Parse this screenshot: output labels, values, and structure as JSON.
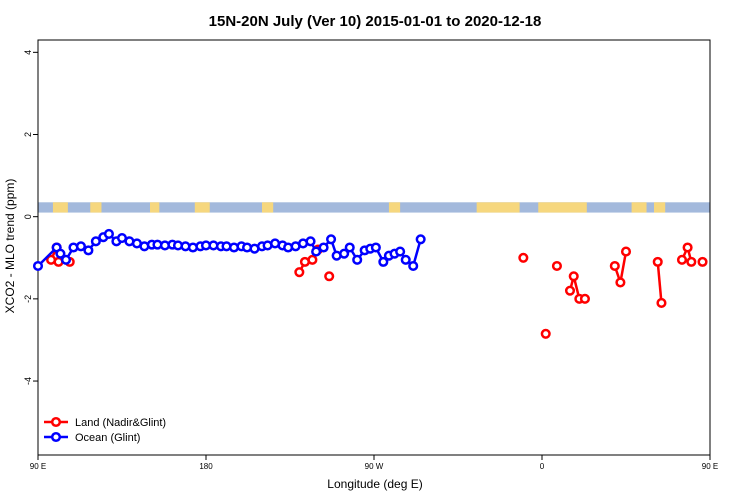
{
  "chart_data": {
    "type": "line",
    "title": "15N-20N July (Ver 10)   2015-01-01 to 2020-12-18",
    "xlabel": "Longitude (deg E)",
    "ylabel": "XCO2 - MLO trend (ppm)",
    "xlim": [
      -90,
      270
    ],
    "ylim": [
      -5.8,
      4.3
    ],
    "x_ticks": [
      {
        "value": -90,
        "label": "90 E"
      },
      {
        "value": 0,
        "label": "180"
      },
      {
        "value": 90,
        "label": "90 W"
      },
      {
        "value": 180,
        "label": "0"
      },
      {
        "value": 270,
        "label": "90 E"
      }
    ],
    "y_ticks": [
      {
        "value": 4,
        "label": "4"
      },
      {
        "value": 2,
        "label": "2"
      },
      {
        "value": 0,
        "label": "0"
      },
      {
        "value": -2,
        "label": "-2"
      },
      {
        "value": -4,
        "label": "-4"
      }
    ],
    "grid": false,
    "legend_position": "bottom-left",
    "land_mask_band": {
      "y_min": 0.1,
      "y_max": 0.35,
      "ocean_color": "#a3b9dc",
      "land_color": "#f6d77e"
    },
    "land_segments_x": [
      [
        -82,
        -74
      ],
      [
        -62,
        -56
      ],
      [
        -30,
        -25
      ],
      [
        -6,
        2
      ],
      [
        30,
        36
      ],
      [
        98,
        104
      ],
      [
        145,
        168
      ],
      [
        178,
        204
      ],
      [
        228,
        236
      ],
      [
        240,
        246
      ]
    ],
    "series": [
      {
        "name": "Land (Nadir&Glint)",
        "color": "#ff0000",
        "segments": [
          [
            [
              -83,
              -1.05
            ],
            [
              -80,
              -0.75
            ],
            [
              -79,
              -1.1
            ]
          ],
          [
            [
              -73,
              -1.1
            ]
          ],
          [
            [
              50,
              -1.35
            ],
            [
              53,
              -1.1
            ],
            [
              57,
              -1.05
            ],
            [
              60,
              -0.8
            ]
          ],
          [
            [
              66,
              -1.45
            ]
          ],
          [
            [
              170,
              -1.0
            ]
          ],
          [
            [
              182,
              -2.85
            ]
          ],
          [
            [
              188,
              -1.2
            ]
          ],
          [
            [
              195,
              -1.8
            ],
            [
              197,
              -1.45
            ],
            [
              200,
              -2.0
            ],
            [
              203,
              -2.0
            ]
          ],
          [
            [
              219,
              -1.2
            ],
            [
              222,
              -1.6
            ],
            [
              225,
              -0.85
            ]
          ],
          [
            [
              242,
              -1.1
            ],
            [
              244,
              -2.1
            ]
          ],
          [
            [
              255,
              -1.05
            ],
            [
              258,
              -0.75
            ],
            [
              260,
              -1.1
            ]
          ],
          [
            [
              266,
              -1.1
            ]
          ]
        ]
      },
      {
        "name": "Ocean (Glint)",
        "color": "#0000ff",
        "segments": [
          [
            [
              -90,
              -1.2
            ],
            [
              -80,
              -0.75
            ],
            [
              -78,
              -0.9
            ],
            [
              -75,
              -1.05
            ],
            [
              -71,
              -0.75
            ],
            [
              -67,
              -0.72
            ],
            [
              -63,
              -0.82
            ],
            [
              -59,
              -0.6
            ],
            [
              -55,
              -0.5
            ],
            [
              -52,
              -0.42
            ],
            [
              -48,
              -0.6
            ],
            [
              -45,
              -0.52
            ],
            [
              -41,
              -0.6
            ],
            [
              -37,
              -0.65
            ],
            [
              -33,
              -0.72
            ],
            [
              -29,
              -0.68
            ],
            [
              -26,
              -0.68
            ],
            [
              -22,
              -0.7
            ],
            [
              -18,
              -0.68
            ],
            [
              -15,
              -0.7
            ],
            [
              -11,
              -0.72
            ],
            [
              -7,
              -0.75
            ],
            [
              -3,
              -0.72
            ],
            [
              0,
              -0.7
            ],
            [
              4,
              -0.7
            ],
            [
              8,
              -0.72
            ],
            [
              11,
              -0.72
            ],
            [
              15,
              -0.75
            ],
            [
              19,
              -0.72
            ],
            [
              22,
              -0.75
            ],
            [
              26,
              -0.78
            ],
            [
              30,
              -0.72
            ],
            [
              33,
              -0.7
            ],
            [
              37,
              -0.65
            ],
            [
              41,
              -0.7
            ],
            [
              44,
              -0.75
            ],
            [
              48,
              -0.72
            ],
            [
              52,
              -0.65
            ],
            [
              56,
              -0.6
            ],
            [
              59,
              -0.85
            ],
            [
              63,
              -0.75
            ],
            [
              67,
              -0.55
            ],
            [
              70,
              -0.95
            ],
            [
              74,
              -0.9
            ],
            [
              77,
              -0.75
            ],
            [
              81,
              -1.05
            ],
            [
              85,
              -0.82
            ],
            [
              88,
              -0.78
            ],
            [
              91,
              -0.75
            ],
            [
              95,
              -1.1
            ],
            [
              98,
              -0.95
            ],
            [
              101,
              -0.9
            ],
            [
              104,
              -0.85
            ],
            [
              107,
              -1.05
            ],
            [
              111,
              -1.2
            ],
            [
              115,
              -0.55
            ]
          ]
        ]
      }
    ]
  }
}
